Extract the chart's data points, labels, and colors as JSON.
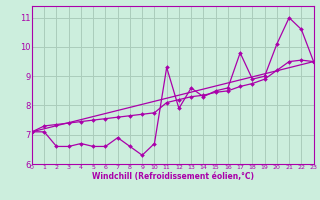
{
  "xlabel": "Windchill (Refroidissement éolien,°C)",
  "x_hours": [
    0,
    1,
    2,
    3,
    4,
    5,
    6,
    7,
    8,
    9,
    10,
    11,
    12,
    13,
    14,
    15,
    16,
    17,
    18,
    19,
    20,
    21,
    22,
    23
  ],
  "y_actual": [
    7.1,
    7.1,
    6.6,
    6.6,
    6.7,
    6.6,
    6.6,
    6.9,
    6.6,
    6.3,
    6.7,
    9.3,
    7.9,
    8.6,
    8.3,
    8.5,
    8.6,
    9.8,
    8.9,
    9.0,
    10.1,
    11.0,
    10.6,
    9.5
  ],
  "y_smooth": [
    7.1,
    7.3,
    7.35,
    7.4,
    7.45,
    7.5,
    7.55,
    7.6,
    7.65,
    7.7,
    7.75,
    8.1,
    8.2,
    8.3,
    8.35,
    8.45,
    8.5,
    8.65,
    8.75,
    8.9,
    9.2,
    9.5,
    9.55,
    9.5
  ],
  "y_linear_start": 7.1,
  "y_linear_end": 9.5,
  "bg_color": "#cceedd",
  "grid_color": "#aaccbb",
  "line_color": "#aa00aa",
  "marker_color": "#aa00aa",
  "ylim": [
    6.0,
    11.4
  ],
  "xlim": [
    0,
    23
  ],
  "yticks": [
    6,
    7,
    8,
    9,
    10,
    11
  ],
  "xticks": [
    0,
    1,
    2,
    3,
    4,
    5,
    6,
    7,
    8,
    9,
    10,
    11,
    12,
    13,
    14,
    15,
    16,
    17,
    18,
    19,
    20,
    21,
    22,
    23
  ]
}
